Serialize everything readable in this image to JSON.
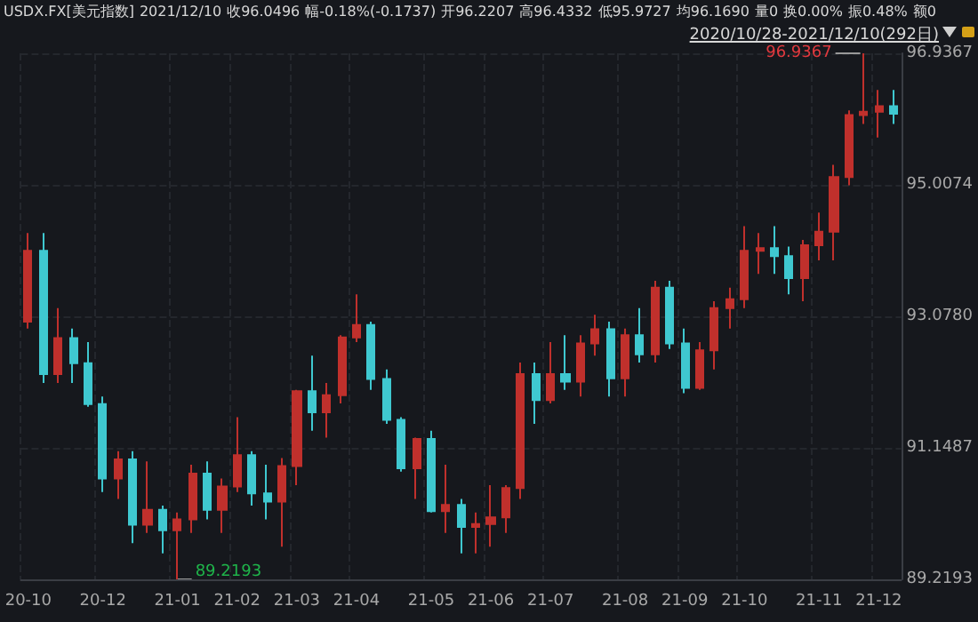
{
  "chart_data": {
    "type": "candlestick",
    "title": "USDX.FX[美元指数]",
    "subtitle": "2020/10/28-2021/12/10(292日)",
    "annotations": [
      "2021/12/10",
      "收96.0496",
      "幅-0.18%(-0.1737)",
      "开96.2207",
      "高96.4332",
      "低95.9727",
      "均96.1690",
      "量0",
      "换0.00%",
      "振0.48%",
      "额0",
      "96.9367",
      "89.2193"
    ],
    "categories": [
      "20-10",
      null,
      null,
      null,
      null,
      "20-12",
      null,
      null,
      null,
      null,
      "21-01",
      null,
      null,
      null,
      "21-02",
      null,
      null,
      null,
      "21-03",
      null,
      null,
      null,
      "21-04",
      null,
      null,
      null,
      null,
      "21-05",
      null,
      null,
      null,
      "21-06",
      null,
      null,
      null,
      "21-07",
      null,
      null,
      null,
      null,
      "21-08",
      null,
      null,
      null,
      "21-09",
      null,
      null,
      null,
      "21-10",
      null,
      null,
      null,
      null,
      "21-11",
      null,
      null,
      null,
      "21-12",
      null
    ],
    "ohlc": [
      [
        93.0,
        94.3,
        92.9,
        94.04
      ],
      [
        94.04,
        94.3,
        92.1,
        92.23
      ],
      [
        92.23,
        93.2,
        92.1,
        92.76
      ],
      [
        92.76,
        92.9,
        92.1,
        92.39
      ],
      [
        92.39,
        92.7,
        91.75,
        91.79
      ],
      [
        91.79,
        91.9,
        90.5,
        90.7
      ],
      [
        90.7,
        91.1,
        90.4,
        90.98
      ],
      [
        90.98,
        91.1,
        89.75,
        90.02
      ],
      [
        90.02,
        90.95,
        89.9,
        90.24
      ],
      [
        90.24,
        90.3,
        89.6,
        89.94
      ],
      [
        89.94,
        90.2,
        89.2193,
        90.1
      ],
      [
        90.1,
        90.9,
        89.9,
        90.77
      ],
      [
        90.77,
        90.95,
        90.1,
        90.24
      ],
      [
        90.24,
        90.7,
        89.9,
        90.58
      ],
      [
        90.58,
        91.6,
        90.5,
        91.04
      ],
      [
        91.04,
        91.1,
        90.3,
        90.48
      ],
      [
        90.48,
        90.9,
        90.1,
        90.36
      ],
      [
        90.36,
        91.0,
        89.7,
        90.88
      ],
      [
        90.88,
        92.0,
        90.6,
        91.98
      ],
      [
        91.98,
        92.5,
        91.4,
        91.67
      ],
      [
        91.67,
        92.1,
        91.3,
        91.92
      ],
      [
        91.92,
        92.8,
        91.8,
        92.77
      ],
      [
        92.77,
        93.4,
        92.7,
        92.95
      ],
      [
        92.95,
        93.0,
        92.0,
        92.16
      ],
      [
        92.16,
        92.3,
        91.5,
        91.56
      ],
      [
        91.56,
        91.6,
        90.8,
        90.85
      ],
      [
        90.85,
        91.3,
        90.4,
        91.28
      ],
      [
        91.28,
        91.4,
        90.2,
        90.22
      ],
      [
        90.22,
        90.9,
        89.9,
        90.31
      ],
      [
        90.31,
        90.4,
        89.6,
        89.99
      ],
      [
        89.99,
        90.2,
        89.6,
        90.03
      ],
      [
        90.03,
        90.6,
        89.7,
        90.13
      ],
      [
        90.13,
        90.6,
        89.9,
        90.56
      ],
      [
        90.56,
        92.4,
        90.4,
        92.23
      ],
      [
        92.23,
        92.4,
        91.5,
        91.85
      ],
      [
        91.85,
        92.7,
        91.8,
        92.23
      ],
      [
        92.23,
        92.8,
        92.0,
        92.12
      ],
      [
        92.12,
        92.8,
        91.9,
        92.68
      ],
      [
        92.68,
        93.1,
        92.5,
        92.89
      ],
      [
        92.89,
        93.0,
        91.9,
        92.17
      ],
      [
        92.17,
        92.9,
        91.9,
        92.8
      ],
      [
        92.8,
        93.2,
        92.4,
        92.52
      ],
      [
        92.52,
        93.6,
        92.4,
        93.5
      ],
      [
        93.5,
        93.6,
        92.6,
        92.68
      ],
      [
        92.68,
        92.9,
        91.95,
        92.03
      ],
      [
        92.03,
        92.7,
        92.0,
        92.58
      ],
      [
        92.58,
        93.3,
        92.3,
        93.2
      ],
      [
        93.2,
        93.5,
        92.9,
        93.33
      ],
      [
        93.33,
        94.4,
        93.2,
        94.04
      ],
      [
        94.04,
        94.3,
        93.7,
        94.08
      ],
      [
        94.08,
        94.4,
        93.7,
        93.96
      ],
      [
        93.96,
        94.1,
        93.4,
        93.64
      ],
      [
        93.64,
        94.2,
        93.3,
        94.12
      ],
      [
        94.12,
        94.6,
        93.9,
        94.32
      ],
      [
        94.32,
        95.3,
        93.9,
        95.12
      ],
      [
        95.12,
        96.1,
        95.0,
        96.03
      ],
      [
        96.03,
        96.9367,
        95.9,
        96.08
      ],
      [
        96.08,
        96.4,
        95.7,
        96.16
      ],
      [
        96.16,
        96.4,
        95.9,
        96.05
      ]
    ],
    "colors": [
      "#c0302c",
      "#3fc8d0",
      "#c0302c",
      "#3fc8d0",
      "#3fc8d0",
      "#3fc8d0",
      "#c0302c",
      "#3fc8d0",
      "#c0302c",
      "#3fc8d0",
      "#c0302c",
      "#c0302c",
      "#3fc8d0",
      "#c0302c",
      "#c0302c",
      "#3fc8d0",
      "#3fc8d0",
      "#c0302c",
      "#c0302c",
      "#3fc8d0",
      "#c0302c",
      "#c0302c",
      "#c0302c",
      "#3fc8d0",
      "#3fc8d0",
      "#3fc8d0",
      "#c0302c",
      "#3fc8d0",
      "#c0302c",
      "#3fc8d0",
      "#c0302c",
      "#c0302c",
      "#c0302c",
      "#c0302c",
      "#3fc8d0",
      "#c0302c",
      "#3fc8d0",
      "#c0302c",
      "#c0302c",
      "#3fc8d0",
      "#c0302c",
      "#3fc8d0",
      "#c0302c",
      "#3fc8d0",
      "#3fc8d0",
      "#c0302c",
      "#c0302c",
      "#c0302c",
      "#c0302c",
      "#c0302c",
      "#3fc8d0",
      "#3fc8d0",
      "#c0302c",
      "#c0302c",
      "#c0302c",
      "#c0302c",
      "#c0302c",
      "#c0302c",
      "#3fc8d0"
    ],
    "ylim": [
      89.2193,
      96.9367
    ],
    "yticks": [
      89.2193,
      91.1487,
      {
        "value": 93.078,
        "label": "93.0780"
      },
      95.0074,
      96.9367
    ],
    "grid": true
  }
}
